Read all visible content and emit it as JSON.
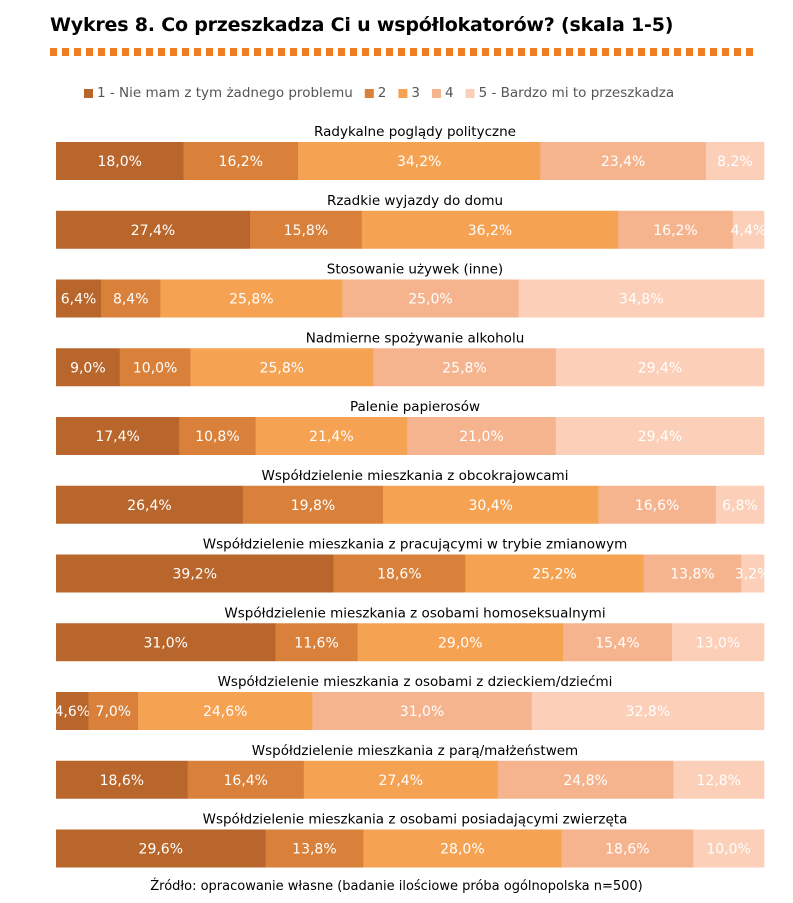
{
  "title": "Wykres 8. Co przeszkadza Ci u współlokatorów? (skala 1-5)",
  "source": "Źródło: opracowanie własne (badanie ilościowe próba ogólnopolska n=500)",
  "colors": [
    "#b8662b",
    "#d9813a",
    "#f5a252",
    "#f6b48e",
    "#fbcfb8"
  ],
  "chart_data": {
    "type": "bar",
    "stacked": true,
    "orientation": "horizontal",
    "legend_position": "top",
    "series": [
      {
        "name": "1 - Nie mam z tym żadnego problemu",
        "values": [
          18.0,
          27.4,
          6.4,
          9.0,
          17.4,
          26.4,
          39.2,
          31.0,
          4.6,
          18.6,
          29.6
        ]
      },
      {
        "name": "2",
        "values": [
          16.2,
          15.8,
          8.4,
          10.0,
          10.8,
          19.8,
          18.6,
          11.6,
          7.0,
          16.4,
          13.8
        ]
      },
      {
        "name": "3",
        "values": [
          34.2,
          36.2,
          25.8,
          25.8,
          21.4,
          30.4,
          25.2,
          29.0,
          24.6,
          27.4,
          28.0
        ]
      },
      {
        "name": "4",
        "values": [
          23.4,
          16.2,
          25.0,
          25.8,
          21.0,
          16.6,
          13.8,
          15.4,
          31.0,
          24.8,
          18.6
        ]
      },
      {
        "name": "5 - Bardzo mi to przeszkadza",
        "values": [
          8.2,
          4.4,
          34.8,
          29.4,
          29.4,
          6.8,
          3.2,
          13.0,
          32.8,
          12.8,
          10.0
        ]
      }
    ],
    "categories": [
      "Radykalne poglądy polityczne",
      "Rzadkie wyjazdy do domu",
      "Stosowanie używek (inne)",
      "Nadmierne spożywanie alkoholu",
      "Palenie papierosów",
      "Współdzielenie mieszkania z obcokrajowcami",
      "Współdzielenie mieszkania z pracującymi w trybie zmianowym",
      "Współdzielenie mieszkania z osobami homoseksualnymi",
      "Współdzielenie mieszkania z osobami z dzieckiem/dziećmi",
      "Współdzielenie mieszkania z parą/małżeństwem",
      "Współdzielenie mieszkania z osobami posiadającymi zwierzęta"
    ],
    "labels": [
      [
        "18,0%",
        "16,2%",
        "34,2%",
        "23,4%",
        "8,2%"
      ],
      [
        "27,4%",
        "15,8%",
        "36,2%",
        "16,2%",
        "4,4%"
      ],
      [
        "6,4%",
        "8,4%",
        "25,8%",
        "25,0%",
        "34,8%"
      ],
      [
        "9,0%",
        "10,0%",
        "25,8%",
        "25,8%",
        "29,4%"
      ],
      [
        "17,4%",
        "10,8%",
        "21,4%",
        "21,0%",
        "29,4%"
      ],
      [
        "26,4%",
        "19,8%",
        "30,4%",
        "16,6%",
        "6,8%"
      ],
      [
        "39,2%",
        "18,6%",
        "25,2%",
        "13,8%",
        "3,2%"
      ],
      [
        "31,0%",
        "11,6%",
        "29,0%",
        "15,4%",
        "13,0%"
      ],
      [
        "4,6%",
        "7,0%",
        "24,6%",
        "31,0%",
        "32,8%"
      ],
      [
        "18,6%",
        "16,4%",
        "27,4%",
        "24,8%",
        "12,8%"
      ],
      [
        "29,6%",
        "13,8%",
        "28,0%",
        "18,6%",
        "10,0%"
      ]
    ]
  }
}
